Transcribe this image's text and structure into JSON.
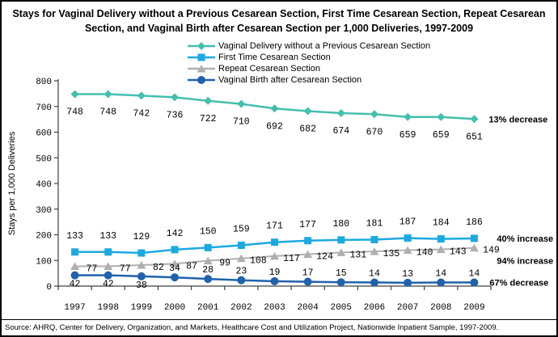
{
  "title": "Stays for Vaginal Delivery without a Previous Cesarean Section, First Time Cesarean Section, Repeat Cesarean Section, and Vaginal Birth after Cesarean Section per 1,000 Deliveries, 1997-2009",
  "source": "Source: AHRQ, Center for Delivery, Organization, and Markets, Healthcare Cost and Utilization Project, Nationwide Inpatient Sample, 1997-2009.",
  "chart_data": {
    "type": "line",
    "x": [
      1997,
      1998,
      1999,
      2000,
      2001,
      2002,
      2003,
      2004,
      2005,
      2006,
      2007,
      2008,
      2009
    ],
    "xlabel": "",
    "ylabel": "Stays per 1,000 Deliveries",
    "ylim": [
      0,
      800
    ],
    "yticks": [
      0,
      100,
      200,
      300,
      400,
      500,
      600,
      700,
      800
    ],
    "grid": false,
    "legend_position": "top-center",
    "series": [
      {
        "name": "Vaginal Delivery without  a Previous Cesarean Section",
        "marker": "diamond",
        "color": "#44BFAC",
        "values": [
          748,
          748,
          742,
          736,
          722,
          710,
          692,
          682,
          674,
          670,
          659,
          659,
          651
        ],
        "annotation": "13% decrease"
      },
      {
        "name": "First Time Cesarean Section",
        "marker": "square",
        "color": "#1CA9E0",
        "values": [
          133,
          133,
          129,
          142,
          150,
          159,
          171,
          177,
          180,
          181,
          187,
          184,
          186
        ],
        "annotation": "40% increase"
      },
      {
        "name": "Repeat Cesarean Section",
        "marker": "triangle",
        "color": "#AFAFAF",
        "values": [
          77,
          77,
          82,
          87,
          99,
          108,
          117,
          124,
          131,
          135,
          140,
          143,
          149
        ],
        "annotation": "94% increase"
      },
      {
        "name": "Vaginal Birth after Cesarean Section",
        "marker": "circle",
        "color": "#2062AC",
        "values": [
          42,
          42,
          38,
          34,
          28,
          23,
          19,
          17,
          15,
          14,
          13,
          14,
          14
        ],
        "annotation": "67% decrease"
      }
    ]
  }
}
